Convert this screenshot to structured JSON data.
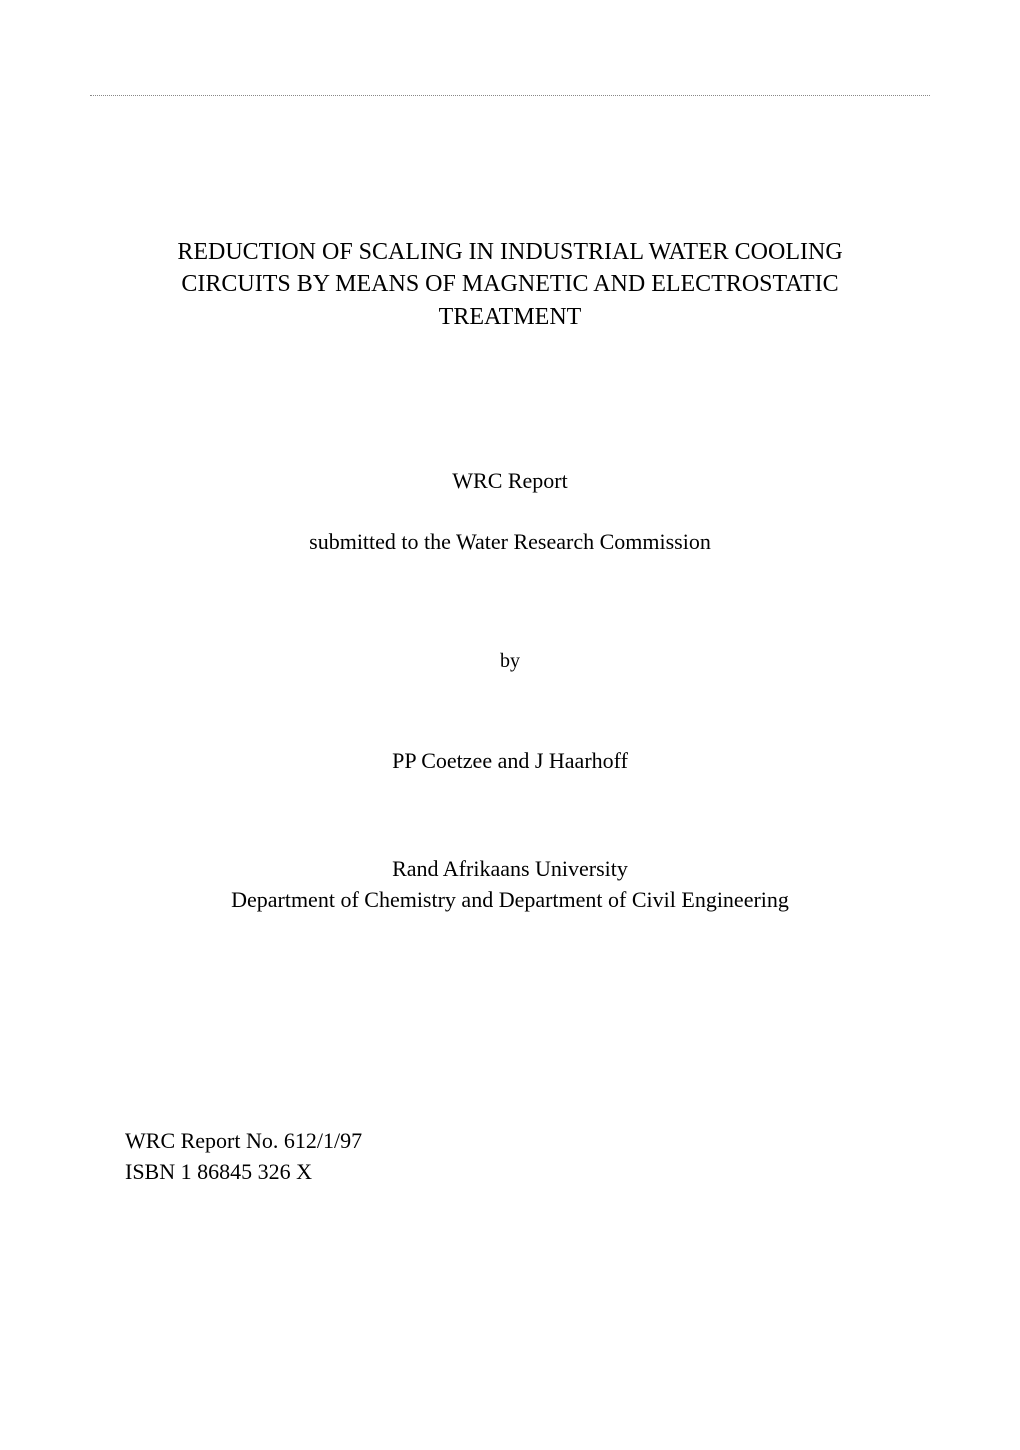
{
  "colors": {
    "background": "#ffffff",
    "text": "#000000",
    "separator": "#888888"
  },
  "typography": {
    "font_family": "Times New Roman",
    "title_fontsize": 24,
    "body_fontsize": 22,
    "by_fontsize": 20
  },
  "title": {
    "line1": "REDUCTION OF SCALING IN INDUSTRIAL WATER COOLING",
    "line2": "CIRCUITS BY MEANS OF MAGNETIC AND ELECTROSTATIC",
    "line3": "TREATMENT"
  },
  "report_label": "WRC Report",
  "submitted_to": "submitted to the Water Research Commission",
  "by_label": "by",
  "authors": "PP Coetzee and J Haarhoff",
  "affiliation": {
    "line1": "Rand Afrikaans University",
    "line2": "Department of Chemistry and Department of Civil Engineering"
  },
  "footer": {
    "report_no": "WRC Report No. 612/1/97",
    "isbn": "ISBN 1 86845 326 X"
  }
}
